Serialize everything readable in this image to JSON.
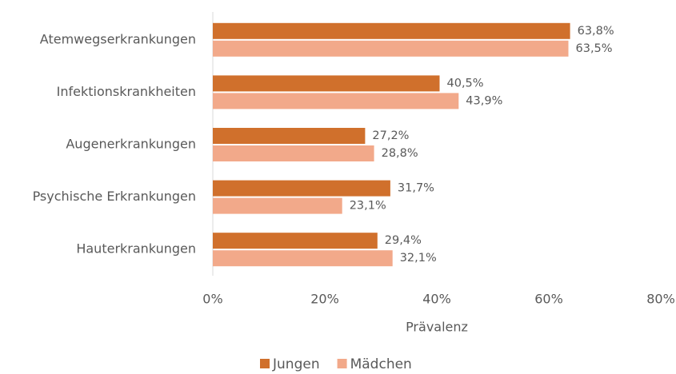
{
  "chart_data": {
    "type": "bar",
    "orientation": "horizontal",
    "categories": [
      "Atemwegserkrankungen",
      "Infektionskrankheiten",
      "Augenerkrankungen",
      "Psychische Erkrankungen",
      "Hauterkrankungen"
    ],
    "series": [
      {
        "name": "Jungen",
        "color": "#d0702c",
        "values": [
          63.8,
          40.5,
          27.2,
          31.7,
          29.4
        ],
        "value_labels": [
          "63,8%",
          "40,5%",
          "27,2%",
          "31,7%",
          "29,4%"
        ]
      },
      {
        "name": "Mädchen",
        "color": "#f2a98a",
        "values": [
          63.5,
          43.9,
          28.8,
          23.1,
          32.1
        ],
        "value_labels": [
          "63,5%",
          "43,9%",
          "28,8%",
          "23,1%",
          "32,1%"
        ]
      }
    ],
    "x_label": "Prävalenz",
    "xlim": [
      0,
      80
    ],
    "xticks": [
      {
        "value": 0,
        "label": "0%"
      },
      {
        "value": 20,
        "label": "20%"
      },
      {
        "value": 40,
        "label": "40%"
      },
      {
        "value": 60,
        "label": "60%"
      },
      {
        "value": 80,
        "label": "80%"
      }
    ],
    "grid": false,
    "legend": "bottom"
  }
}
